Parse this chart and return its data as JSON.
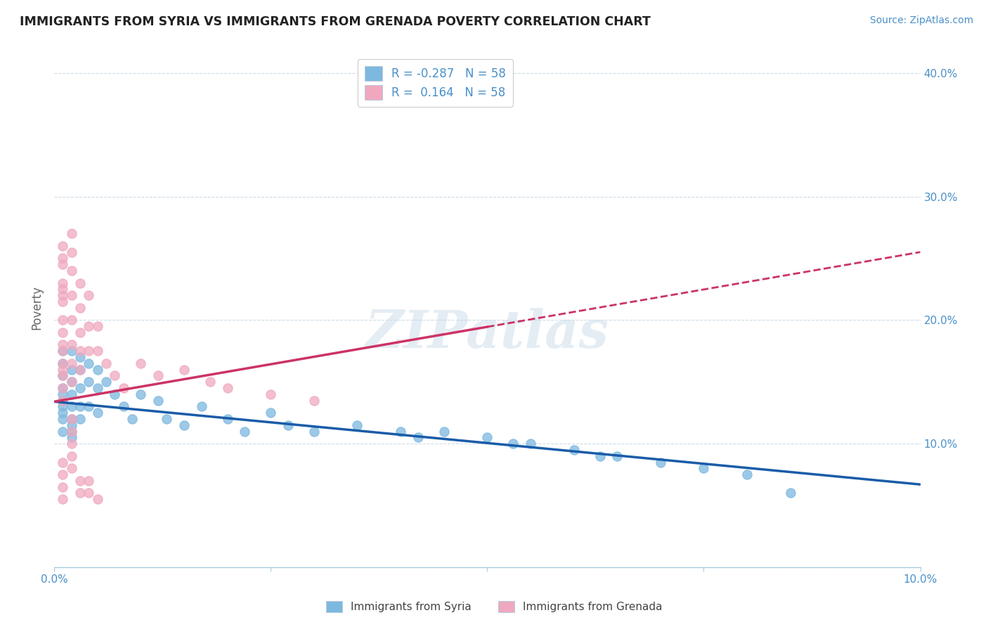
{
  "title": "IMMIGRANTS FROM SYRIA VS IMMIGRANTS FROM GRENADA POVERTY CORRELATION CHART",
  "source": "Source: ZipAtlas.com",
  "ylabel": "Poverty",
  "legend_syria": "R = -0.287   N = 58",
  "legend_grenada": "R =  0.164   N = 58",
  "legend_label_syria": "Immigrants from Syria",
  "legend_label_grenada": "Immigrants from Grenada",
  "color_syria": "#7db8df",
  "color_grenada": "#f0a8be",
  "color_trendline_syria": "#1a5ca8",
  "color_trendline_grenada": "#cc3366",
  "color_axis_labels": "#4a90c8",
  "color_title": "#222222",
  "color_source": "#4a90c8",
  "watermark": "ZIPatlas",
  "xlim": [
    0.0,
    0.1
  ],
  "ylim": [
    0.0,
    0.42
  ],
  "yticks": [
    0.0,
    0.1,
    0.2,
    0.3,
    0.4
  ],
  "ytick_labels": [
    "",
    "10.0%",
    "20.0%",
    "30.0%",
    "40.0%"
  ],
  "xticks": [
    0.0,
    0.025,
    0.05,
    0.075,
    0.1
  ],
  "xtick_labels": [
    "0.0%",
    "",
    "",
    "",
    "10.0%"
  ],
  "syria_x": [
    0.001,
    0.001,
    0.001,
    0.001,
    0.001,
    0.001,
    0.001,
    0.001,
    0.001,
    0.001,
    0.002,
    0.002,
    0.002,
    0.002,
    0.002,
    0.002,
    0.002,
    0.002,
    0.002,
    0.003,
    0.003,
    0.003,
    0.003,
    0.003,
    0.004,
    0.004,
    0.004,
    0.005,
    0.005,
    0.005,
    0.006,
    0.007,
    0.008,
    0.009,
    0.01,
    0.012,
    0.013,
    0.015,
    0.017,
    0.02,
    0.022,
    0.025,
    0.027,
    0.03,
    0.035,
    0.04,
    0.042,
    0.045,
    0.05,
    0.053,
    0.055,
    0.06,
    0.063,
    0.065,
    0.07,
    0.075,
    0.08,
    0.085
  ],
  "syria_y": [
    0.175,
    0.165,
    0.155,
    0.145,
    0.14,
    0.135,
    0.13,
    0.125,
    0.12,
    0.11,
    0.175,
    0.16,
    0.15,
    0.14,
    0.13,
    0.12,
    0.115,
    0.11,
    0.105,
    0.17,
    0.16,
    0.145,
    0.13,
    0.12,
    0.165,
    0.15,
    0.13,
    0.16,
    0.145,
    0.125,
    0.15,
    0.14,
    0.13,
    0.12,
    0.14,
    0.135,
    0.12,
    0.115,
    0.13,
    0.12,
    0.11,
    0.125,
    0.115,
    0.11,
    0.115,
    0.11,
    0.105,
    0.11,
    0.105,
    0.1,
    0.1,
    0.095,
    0.09,
    0.09,
    0.085,
    0.08,
    0.075,
    0.06
  ],
  "grenada_x": [
    0.001,
    0.001,
    0.001,
    0.001,
    0.001,
    0.001,
    0.001,
    0.001,
    0.001,
    0.001,
    0.001,
    0.001,
    0.001,
    0.001,
    0.001,
    0.001,
    0.002,
    0.002,
    0.002,
    0.002,
    0.002,
    0.002,
    0.002,
    0.002,
    0.003,
    0.003,
    0.003,
    0.003,
    0.003,
    0.004,
    0.004,
    0.004,
    0.005,
    0.005,
    0.006,
    0.007,
    0.008,
    0.01,
    0.012,
    0.015,
    0.018,
    0.02,
    0.025,
    0.03,
    0.002,
    0.002,
    0.002,
    0.002,
    0.002,
    0.001,
    0.001,
    0.001,
    0.001,
    0.003,
    0.003,
    0.004,
    0.004,
    0.005
  ],
  "grenada_y": [
    0.26,
    0.25,
    0.245,
    0.23,
    0.225,
    0.22,
    0.215,
    0.2,
    0.19,
    0.18,
    0.175,
    0.165,
    0.16,
    0.155,
    0.145,
    0.135,
    0.27,
    0.255,
    0.24,
    0.22,
    0.2,
    0.18,
    0.165,
    0.15,
    0.23,
    0.21,
    0.19,
    0.175,
    0.16,
    0.22,
    0.195,
    0.175,
    0.195,
    0.175,
    0.165,
    0.155,
    0.145,
    0.165,
    0.155,
    0.16,
    0.15,
    0.145,
    0.14,
    0.135,
    0.12,
    0.11,
    0.1,
    0.09,
    0.08,
    0.085,
    0.075,
    0.065,
    0.055,
    0.07,
    0.06,
    0.07,
    0.06,
    0.055
  ]
}
